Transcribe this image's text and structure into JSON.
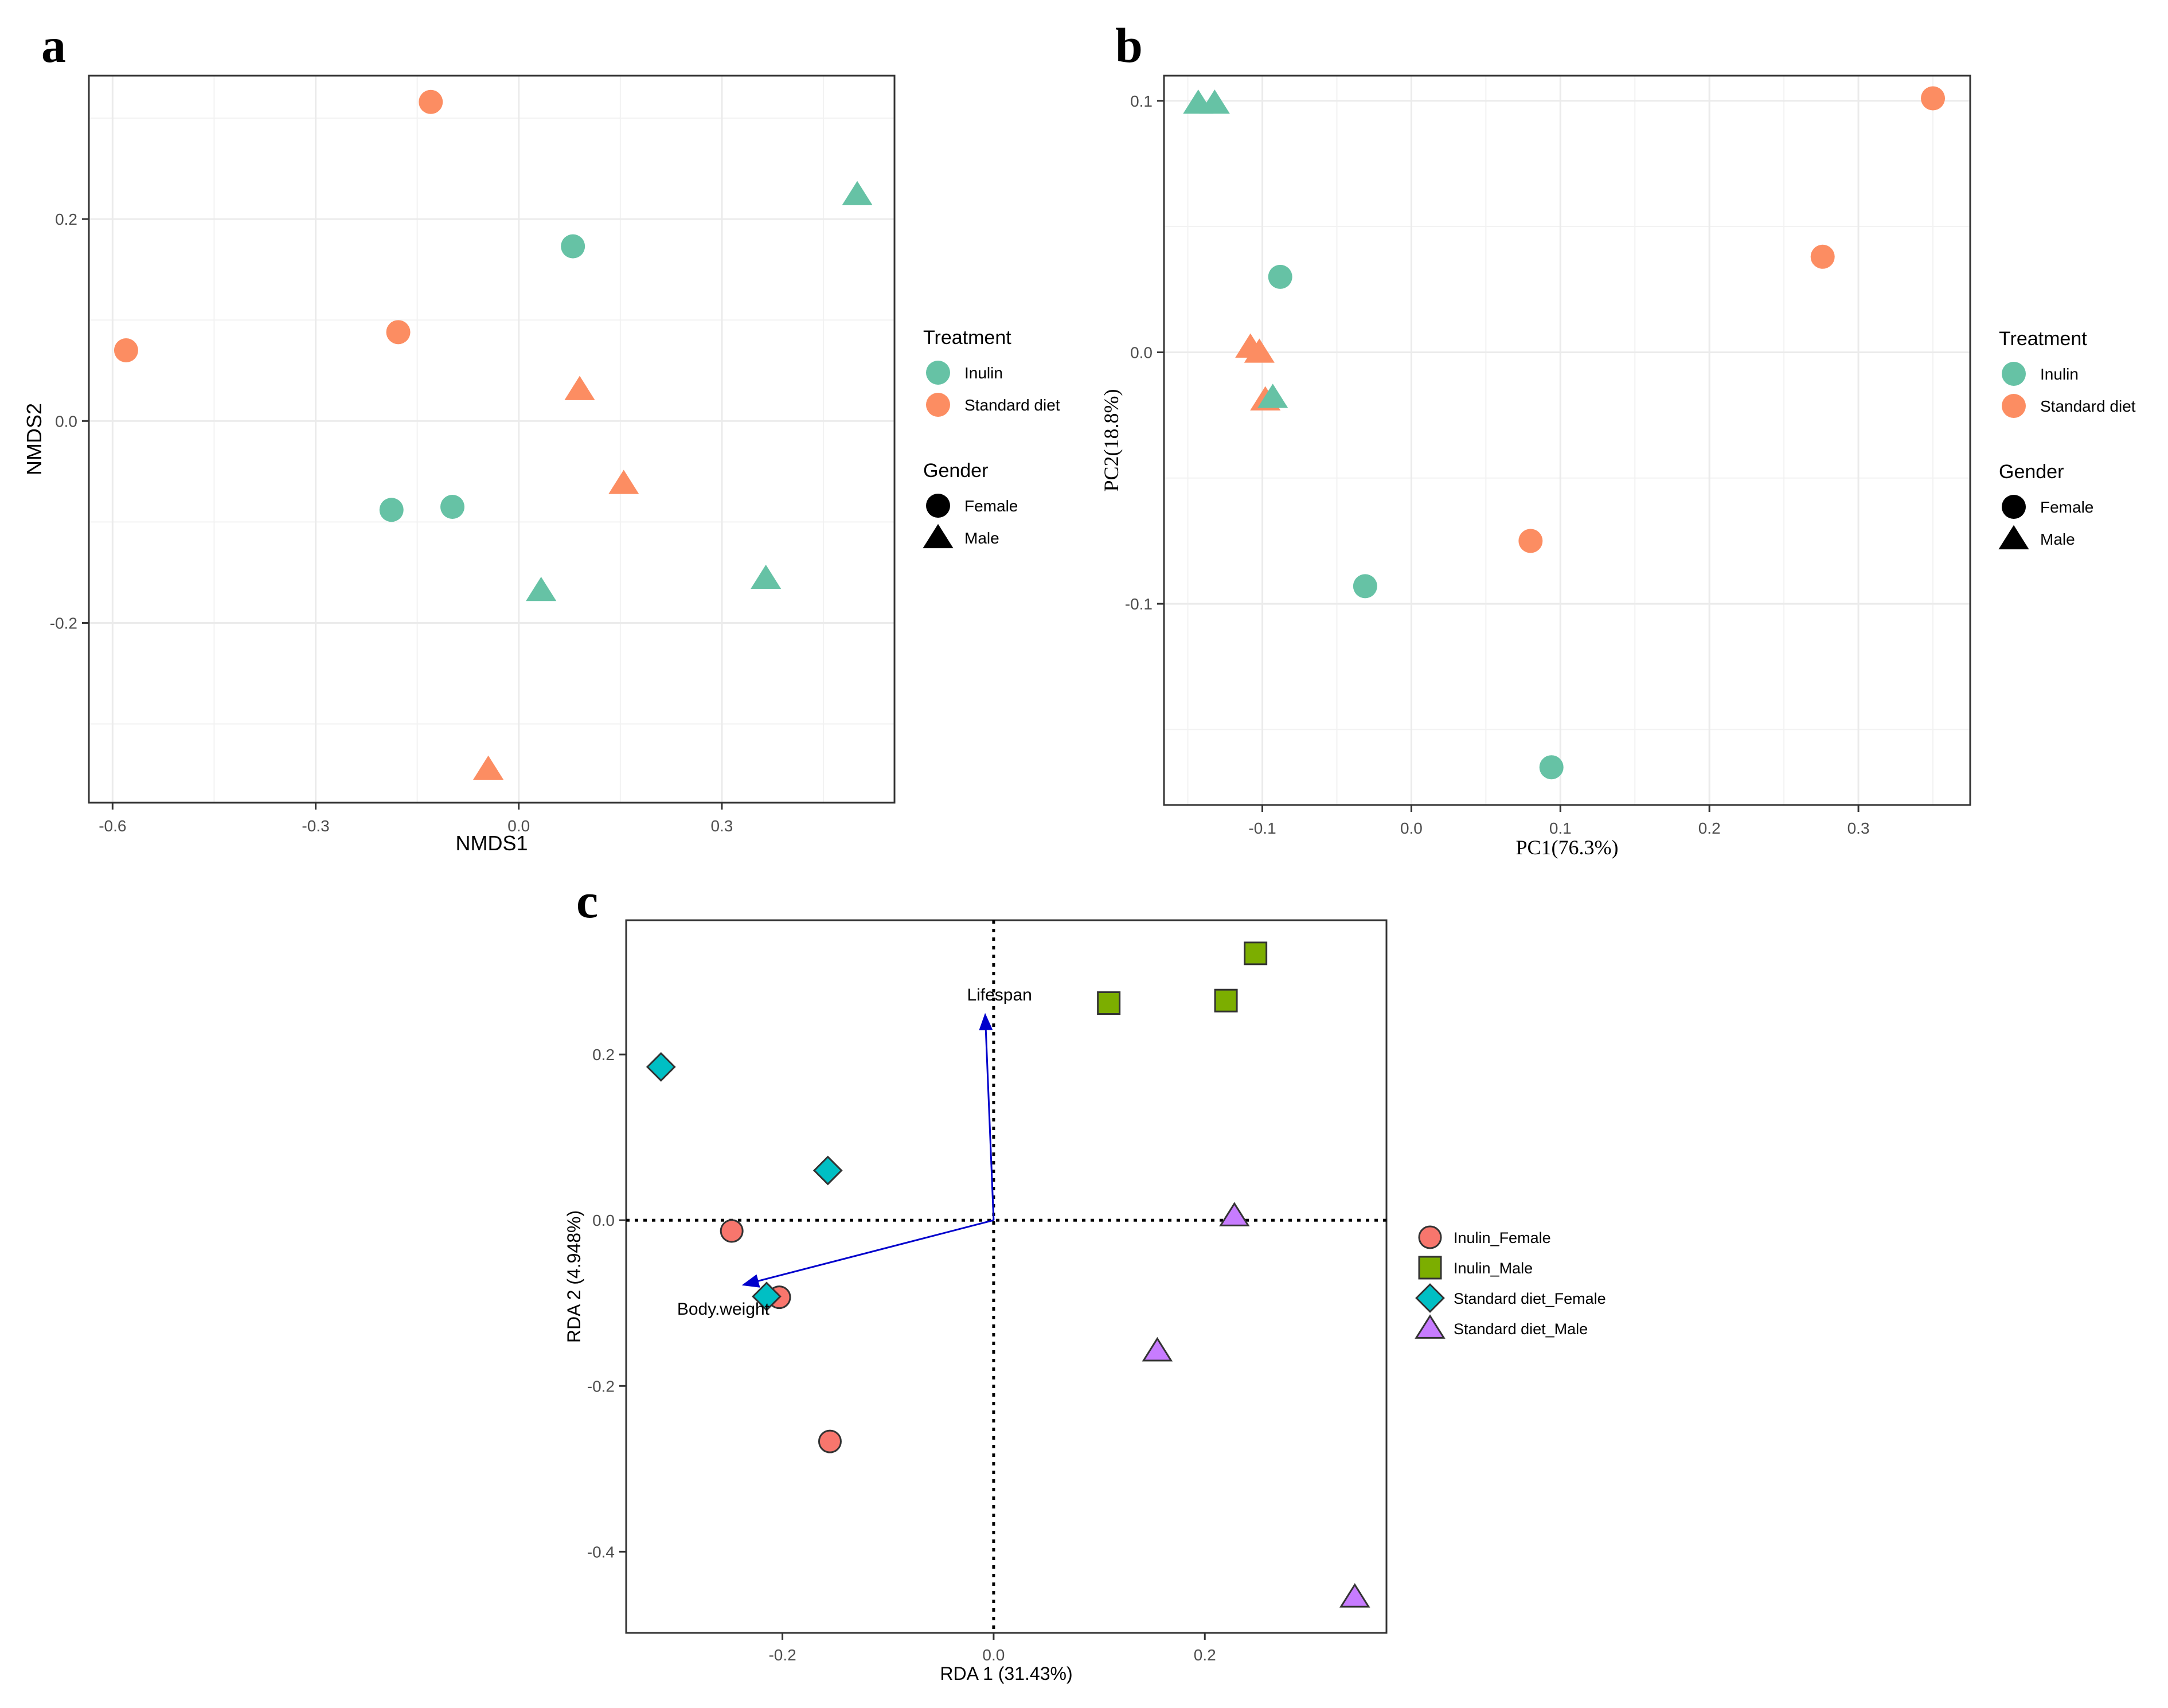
{
  "colors": {
    "inulin": "#66C2A5",
    "standard_diet": "#FC8D62",
    "inulin_female": "#F8766D",
    "inulin_male": "#7CAE00",
    "std_female": "#00BFC4",
    "std_male": "#C77CFF",
    "arrow": "#0000CC",
    "grid": "#EBEBEB"
  },
  "chart_data": [
    {
      "id": "a",
      "panel_label": "a",
      "type": "scatter",
      "xlabel": "NMDS1",
      "ylabel": "NMDS2",
      "xlim": [
        -0.635,
        0.555
      ],
      "ylim": [
        -0.378,
        0.342
      ],
      "xticks": [
        {
          "v": -0.6,
          "label": "-0.6"
        },
        {
          "v": -0.3,
          "label": "-0.3"
        },
        {
          "v": 0.0,
          "label": "0.0"
        },
        {
          "v": 0.3,
          "label": "0.3"
        }
      ],
      "yticks": [
        {
          "v": -0.2,
          "label": "-0.2"
        },
        {
          "v": 0.0,
          "label": "0.0"
        },
        {
          "v": 0.2,
          "label": "0.2"
        }
      ],
      "legend": [
        {
          "title": "Treatment",
          "items": [
            {
              "label": "Inulin",
              "shape": "circle",
              "color": "inulin"
            },
            {
              "label": "Standard diet",
              "shape": "circle",
              "color": "standard_diet"
            }
          ]
        },
        {
          "title": "Gender",
          "items": [
            {
              "label": "Female",
              "shape": "circle",
              "color": "black"
            },
            {
              "label": "Male",
              "shape": "triangle",
              "color": "black"
            }
          ]
        }
      ],
      "points": [
        {
          "x": -0.13,
          "y": 0.316,
          "treatment": "Standard diet",
          "gender": "Female"
        },
        {
          "x": -0.58,
          "y": 0.07,
          "treatment": "Standard diet",
          "gender": "Female"
        },
        {
          "x": -0.178,
          "y": 0.088,
          "treatment": "Standard diet",
          "gender": "Female"
        },
        {
          "x": 0.09,
          "y": 0.031,
          "treatment": "Standard diet",
          "gender": "Male"
        },
        {
          "x": 0.155,
          "y": -0.062,
          "treatment": "Standard diet",
          "gender": "Male"
        },
        {
          "x": -0.045,
          "y": -0.345,
          "treatment": "Standard diet",
          "gender": "Male"
        },
        {
          "x": 0.08,
          "y": 0.173,
          "treatment": "Inulin",
          "gender": "Female"
        },
        {
          "x": -0.188,
          "y": -0.088,
          "treatment": "Inulin",
          "gender": "Female"
        },
        {
          "x": -0.098,
          "y": -0.085,
          "treatment": "Inulin",
          "gender": "Female"
        },
        {
          "x": 0.5,
          "y": 0.224,
          "treatment": "Inulin",
          "gender": "Male"
        },
        {
          "x": 0.033,
          "y": -0.168,
          "treatment": "Inulin",
          "gender": "Male"
        },
        {
          "x": 0.365,
          "y": -0.156,
          "treatment": "Inulin",
          "gender": "Male"
        }
      ]
    },
    {
      "id": "b",
      "panel_label": "b",
      "type": "scatter",
      "xlabel": "PC1(76.3%)",
      "ylabel": "PC2(18.8%)",
      "xlim": [
        -0.166,
        0.375
      ],
      "ylim": [
        -0.18,
        0.11
      ],
      "xticks": [
        {
          "v": -0.1,
          "label": "-0.1"
        },
        {
          "v": 0.0,
          "label": "0.0"
        },
        {
          "v": 0.1,
          "label": "0.1"
        },
        {
          "v": 0.2,
          "label": "0.2"
        },
        {
          "v": 0.3,
          "label": "0.3"
        }
      ],
      "yticks": [
        {
          "v": -0.1,
          "label": "-0.1"
        },
        {
          "v": 0.0,
          "label": "0.0"
        },
        {
          "v": 0.1,
          "label": "0.1"
        }
      ],
      "legend": [
        {
          "title": "Treatment",
          "items": [
            {
              "label": "Inulin",
              "shape": "circle",
              "color": "inulin"
            },
            {
              "label": "Standard diet",
              "shape": "circle",
              "color": "standard_diet"
            }
          ]
        },
        {
          "title": "Gender",
          "items": [
            {
              "label": "Female",
              "shape": "circle",
              "color": "black"
            },
            {
              "label": "Male",
              "shape": "triangle",
              "color": "black"
            }
          ]
        }
      ],
      "points": [
        {
          "x": 0.35,
          "y": 0.101,
          "treatment": "Standard diet",
          "gender": "Female"
        },
        {
          "x": 0.276,
          "y": 0.038,
          "treatment": "Standard diet",
          "gender": "Female"
        },
        {
          "x": 0.08,
          "y": -0.075,
          "treatment": "Standard diet",
          "gender": "Female"
        },
        {
          "x": -0.108,
          "y": 0.002,
          "treatment": "Standard diet",
          "gender": "Male"
        },
        {
          "x": -0.102,
          "y": 0.0,
          "treatment": "Standard diet",
          "gender": "Male"
        },
        {
          "x": -0.098,
          "y": -0.019,
          "treatment": "Standard diet",
          "gender": "Male"
        },
        {
          "x": -0.143,
          "y": 0.099,
          "treatment": "Inulin",
          "gender": "Male"
        },
        {
          "x": -0.132,
          "y": 0.099,
          "treatment": "Inulin",
          "gender": "Male"
        },
        {
          "x": -0.093,
          "y": -0.018,
          "treatment": "Inulin",
          "gender": "Male"
        },
        {
          "x": -0.088,
          "y": 0.03,
          "treatment": "Inulin",
          "gender": "Female"
        },
        {
          "x": -0.031,
          "y": -0.093,
          "treatment": "Inulin",
          "gender": "Female"
        },
        {
          "x": 0.094,
          "y": -0.165,
          "treatment": "Inulin",
          "gender": "Female"
        }
      ]
    },
    {
      "id": "c",
      "panel_label": "c",
      "type": "scatter",
      "xlabel": "RDA 1 (31.43%)",
      "ylabel": "RDA 2 (4.948%)",
      "xlim": [
        -0.348,
        0.372
      ],
      "ylim": [
        -0.498,
        0.362
      ],
      "xticks": [
        {
          "v": -0.2,
          "label": "-0.2"
        },
        {
          "v": 0.0,
          "label": "0.0"
        },
        {
          "v": 0.2,
          "label": "0.2"
        }
      ],
      "yticks": [
        {
          "v": -0.4,
          "label": "-0.4"
        },
        {
          "v": -0.2,
          "label": "-0.2"
        },
        {
          "v": 0.0,
          "label": "0.0"
        },
        {
          "v": 0.2,
          "label": "0.2"
        }
      ],
      "legend": [
        {
          "title": "",
          "items": [
            {
              "label": "Inulin_Female",
              "shape": "circle",
              "color": "inulin_female"
            },
            {
              "label": "Inulin_Male",
              "shape": "square",
              "color": "inulin_male"
            },
            {
              "label": "Standard diet_Female",
              "shape": "diamond",
              "color": "std_female"
            },
            {
              "label": "Standard diet_Male",
              "shape": "triangle",
              "color": "std_male"
            }
          ]
        }
      ],
      "points": [
        {
          "x": -0.248,
          "y": -0.013,
          "group": "Inulin_Female"
        },
        {
          "x": -0.203,
          "y": -0.093,
          "group": "Inulin_Female"
        },
        {
          "x": -0.155,
          "y": -0.267,
          "group": "Inulin_Female"
        },
        {
          "x": 0.109,
          "y": 0.262,
          "group": "Inulin_Male"
        },
        {
          "x": 0.22,
          "y": 0.265,
          "group": "Inulin_Male"
        },
        {
          "x": 0.248,
          "y": 0.322,
          "group": "Inulin_Male"
        },
        {
          "x": -0.315,
          "y": 0.185,
          "group": "Standard diet_Female"
        },
        {
          "x": -0.157,
          "y": 0.06,
          "group": "Standard diet_Female"
        },
        {
          "x": -0.215,
          "y": -0.092,
          "group": "Standard diet_Female"
        },
        {
          "x": 0.228,
          "y": 0.005,
          "group": "Standard diet_Male"
        },
        {
          "x": 0.155,
          "y": -0.158,
          "group": "Standard diet_Male"
        },
        {
          "x": 0.342,
          "y": -0.455,
          "group": "Standard diet_Male"
        }
      ],
      "vectors": [
        {
          "label": "Lifespan",
          "x": -0.008,
          "y": 0.248
        },
        {
          "label": "Body.weight",
          "x": -0.237,
          "y": -0.078
        }
      ]
    }
  ]
}
